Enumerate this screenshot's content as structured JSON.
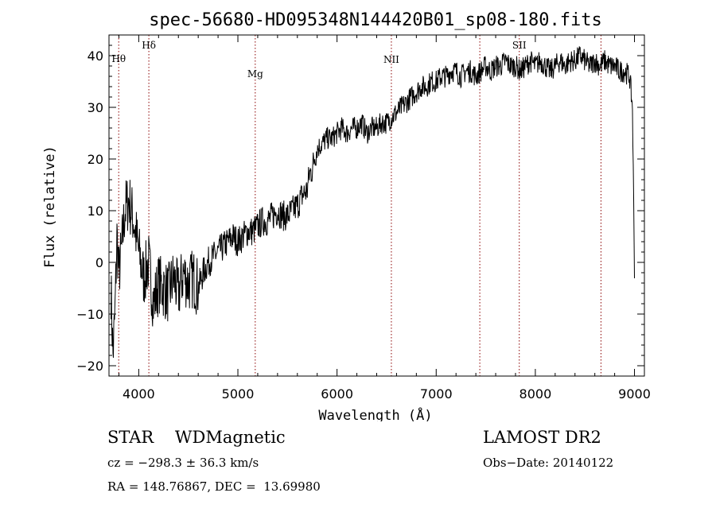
{
  "chart_data": {
    "type": "line",
    "title": "spec-56680-HD095348N144420B01_sp08-180.fits",
    "xlabel": "Wavelength (Å)",
    "ylabel": "Flux (relative)",
    "xlim": [
      3700,
      9100
    ],
    "ylim": [
      -22,
      44
    ],
    "xticks": [
      "4000",
      "5000",
      "6000",
      "7000",
      "8000",
      "9000"
    ],
    "yticks": [
      "−20",
      "−10",
      "0",
      "10",
      "20",
      "30",
      "40"
    ],
    "series": [
      {
        "x": [
          3720,
          3740,
          3760,
          3780,
          3800,
          3830,
          3860,
          3900,
          3950,
          4000,
          4050,
          4100,
          4150,
          4200,
          4250,
          4300,
          4350,
          4400,
          4450,
          4500,
          4550,
          4600,
          4650,
          4700,
          4750,
          4800,
          4850,
          4900,
          4950,
          5000,
          5050,
          5100,
          5150,
          5200,
          5250,
          5300,
          5350,
          5400,
          5450,
          5500,
          5550,
          5600,
          5650,
          5700,
          5720,
          5750,
          5780,
          5800,
          5850,
          5900,
          5950,
          6000,
          6050,
          6100,
          6150,
          6200,
          6250,
          6300,
          6350,
          6400,
          6450,
          6500,
          6550,
          6600,
          6650,
          6700,
          6750,
          6800,
          6850,
          6900,
          6950,
          7000,
          7050,
          7100,
          7150,
          7200,
          7250,
          7300,
          7350,
          7400,
          7450,
          7500,
          7550,
          7600,
          7650,
          7700,
          7750,
          7800,
          7850,
          7900,
          7950,
          8000,
          8050,
          8100,
          8150,
          8200,
          8250,
          8300,
          8350,
          8400,
          8450,
          8500,
          8550,
          8600,
          8650,
          8700,
          8750,
          8800,
          8850,
          8900,
          8950,
          8980,
          9000
        ],
        "y": [
          -5,
          -18,
          -10,
          5,
          -2,
          3,
          10,
          12,
          8,
          2,
          -3,
          0,
          -8,
          -4,
          -5,
          -6,
          -3,
          -6,
          -2,
          -4,
          -3,
          -5,
          -2,
          0,
          1,
          2,
          3,
          4,
          5,
          4,
          5,
          6,
          6,
          7,
          8,
          8,
          9,
          10,
          9,
          9,
          10,
          11,
          13,
          14,
          17,
          18,
          21,
          22,
          23,
          24,
          24,
          25,
          26,
          25,
          26,
          26,
          27,
          25,
          26,
          26,
          27,
          27,
          28,
          29,
          30,
          31,
          32,
          33,
          34,
          34,
          35,
          35,
          36,
          36,
          37,
          37,
          36,
          37,
          37,
          36,
          37,
          38,
          37,
          38,
          38,
          39,
          38,
          38,
          37,
          38,
          39,
          38,
          39,
          38,
          37,
          38,
          39,
          38,
          39,
          39,
          40,
          39,
          38,
          39,
          38,
          39,
          38,
          38,
          37,
          37,
          36,
          30,
          -1
        ]
      }
    ],
    "lines": [
      {
        "label": "Hθ",
        "x": 3798
      },
      {
        "label": "Hδ",
        "x": 4102
      },
      {
        "label": "Mg",
        "x": 5175
      },
      {
        "label": "NII",
        "x": 6548
      },
      {
        "label": "",
        "x": 7440
      },
      {
        "label": "SII",
        "x": 7838
      },
      {
        "label": "",
        "x": 8662
      }
    ],
    "line_color": "#8b0000",
    "series_color": "#000000",
    "grid": false
  },
  "info": {
    "class_line": "STAR    WDMagnetic",
    "survey": "LAMOST DR2",
    "cz": "cz = −298.3 ± 36.3 km/s",
    "obs_date": "Obs−Date: 20140122",
    "radec": "RA = 148.76867, DEC =  13.69980"
  }
}
